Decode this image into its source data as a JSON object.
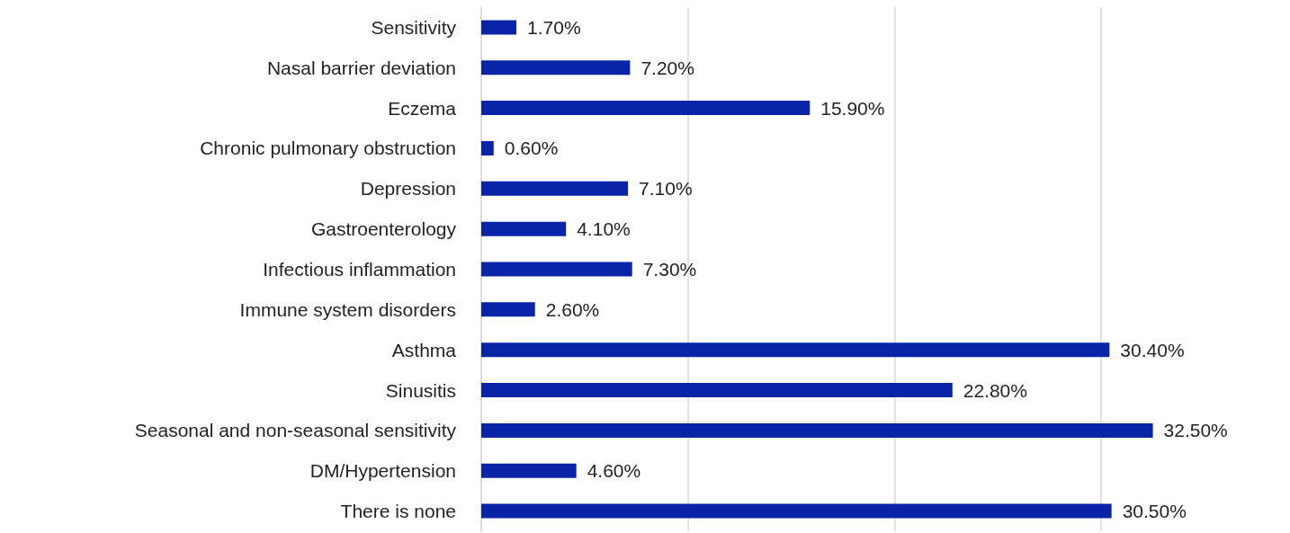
{
  "chart_data": {
    "type": "bar",
    "orientation": "horizontal",
    "categories": [
      "Sensitivity",
      "Nasal barrier deviation",
      "Eczema",
      "Chronic pulmonary obstruction",
      "Depression",
      "Gastroenterology",
      "Infectious inflammation",
      "Immune system disorders",
      "Asthma",
      "Sinusitis",
      "Seasonal and non-seasonal sensitivity",
      "DM/Hypertension",
      "There is none"
    ],
    "series": [
      {
        "color": "#0a24a8",
        "values": [
          1.7,
          7.2,
          15.9,
          0.6,
          7.1,
          4.1,
          7.3,
          2.6,
          30.4,
          22.8,
          32.5,
          4.6,
          30.5
        ],
        "value_labels": [
          "1.70%",
          "7.20%",
          "15.90%",
          "0.60%",
          "7.10%",
          "4.10%",
          "7.30%",
          "2.60%",
          "30.40%",
          "22.80%",
          "32.50%",
          "4.60%",
          "30.50%"
        ]
      }
    ],
    "xticks": [
      {
        "value": 0,
        "label": null
      },
      {
        "value": 10,
        "label": null
      },
      {
        "value": 20,
        "label": null
      },
      {
        "value": 30,
        "label": null
      }
    ],
    "tick_labels": "y",
    "grid": "x"
  }
}
